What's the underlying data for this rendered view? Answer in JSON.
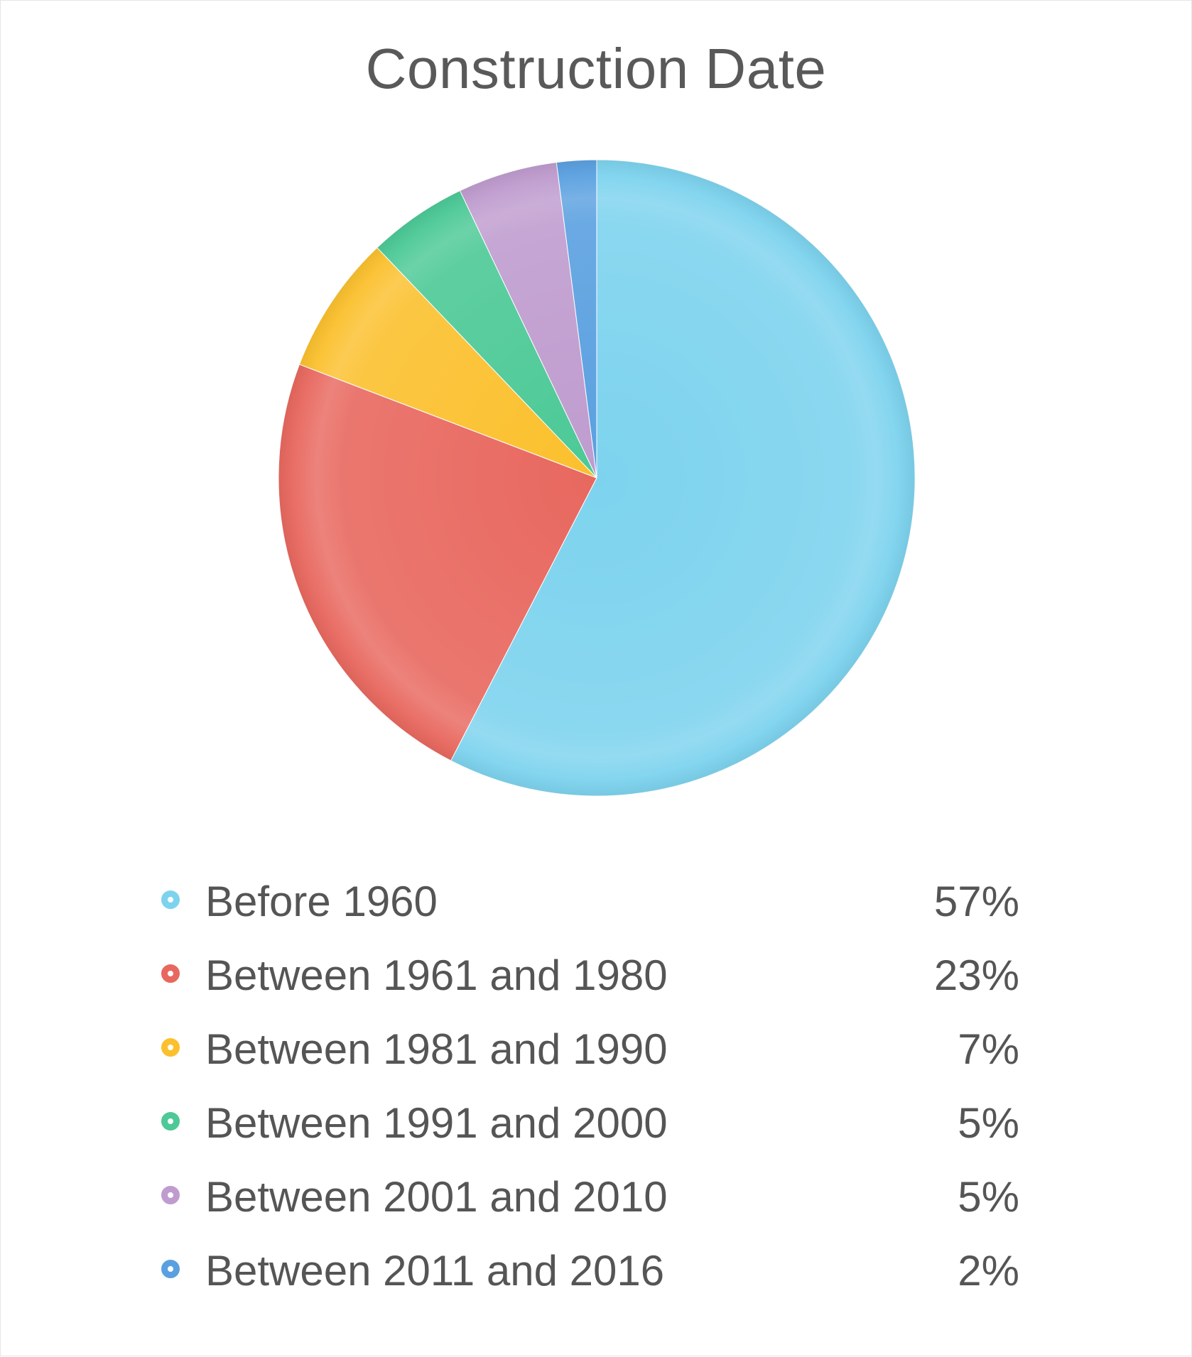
{
  "chart_data": {
    "type": "pie",
    "title": "Construction Date",
    "categories": [
      "Before 1960",
      "Between 1961 and 1980",
      "Between 1981 and 1990",
      "Between 1991 and 2000",
      "Between 2001 and 2010",
      "Between 2011 and 2016"
    ],
    "values": [
      57,
      23,
      7,
      5,
      5,
      2
    ],
    "value_labels": [
      "57%",
      "23%",
      "7%",
      "5%",
      "5%",
      "2%"
    ],
    "colors": [
      "#7dd3ee",
      "#e8685f",
      "#fbc02d",
      "#4cc996",
      "#bf9ccf",
      "#5aa0e0"
    ],
    "legend": "bottom"
  }
}
